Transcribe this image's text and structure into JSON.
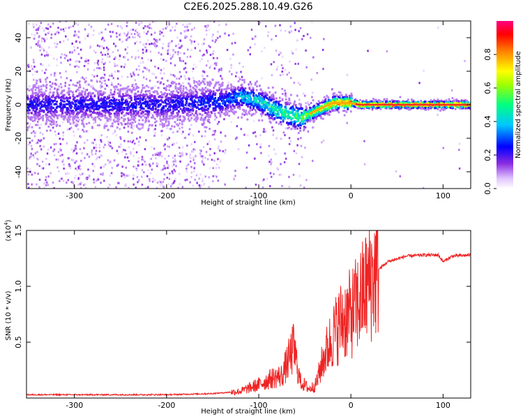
{
  "title": "C2E6.2025.288.10.49.G26",
  "chart_data": [
    {
      "type": "heatmap",
      "title": "C2E6.2025.288.10.49.G26",
      "xlabel": "Height of straight line (km)",
      "ylabel": "Frequency (Hz)",
      "xlim": [
        -352,
        130
      ],
      "ylim": [
        -50,
        50
      ],
      "xticks": [
        -300,
        -200,
        -100,
        0,
        100
      ],
      "yticks": [
        -40,
        -20,
        0,
        20,
        40
      ],
      "colorbar": {
        "label": "Normalized spectral amplitude",
        "range": [
          0,
          1
        ],
        "ticks": [
          "0.0",
          "0.2",
          "0.4",
          "0.6",
          "0.8"
        ],
        "colors": [
          "#ffffff",
          "#d9b3ff",
          "#7000ff",
          "#0000ff",
          "#00c8ff",
          "#00ff80",
          "#b0ff00",
          "#ffff00",
          "#ff8000",
          "#ff0000",
          "#ff0080"
        ]
      },
      "ridge": [
        {
          "x": -350,
          "freq": 0,
          "amp": 0.25
        },
        {
          "x": -200,
          "freq": 0,
          "amp": 0.25
        },
        {
          "x": -140,
          "freq": 2,
          "amp": 0.3
        },
        {
          "x": -120,
          "freq": 5,
          "amp": 0.4
        },
        {
          "x": -100,
          "freq": 2,
          "amp": 0.45
        },
        {
          "x": -80,
          "freq": -4,
          "amp": 0.5
        },
        {
          "x": -55,
          "freq": -8,
          "amp": 0.55
        },
        {
          "x": -40,
          "freq": -4,
          "amp": 0.7
        },
        {
          "x": -20,
          "freq": 1,
          "amp": 0.8
        },
        {
          "x": 0,
          "freq": 1,
          "amp": 0.9
        },
        {
          "x": 10,
          "freq": 0,
          "amp": 1.0
        },
        {
          "x": 130,
          "freq": 0,
          "amp": 1.0
        }
      ]
    },
    {
      "type": "line",
      "xlabel": "Height of straight line (km)",
      "ylabel": "SNR (10 * v/v)",
      "y_multiplier": "(x10",
      "y_exponent": "4",
      "xlim": [
        -352,
        130
      ],
      "ylim": [
        0,
        1.5
      ],
      "xticks": [
        -300,
        -200,
        -100,
        0,
        100
      ],
      "yticks": [
        "0.5",
        "1.0",
        "1.5"
      ],
      "color": "#ee2222",
      "series": [
        {
          "name": "SNR",
          "x": [
            -352,
            -250,
            -200,
            -150,
            -120,
            -100,
            -85,
            -75,
            -62,
            -55,
            -45,
            -38,
            -30,
            -20,
            -10,
            0,
            10,
            20,
            30,
            40,
            60,
            80,
            95,
            100,
            110,
            130
          ],
          "y": [
            0.03,
            0.03,
            0.03,
            0.04,
            0.06,
            0.12,
            0.18,
            0.2,
            0.45,
            0.15,
            0.08,
            0.12,
            0.35,
            0.55,
            0.7,
            0.75,
            0.88,
            1.05,
            1.15,
            1.22,
            1.27,
            1.28,
            1.28,
            1.22,
            1.27,
            1.28
          ]
        }
      ]
    }
  ]
}
